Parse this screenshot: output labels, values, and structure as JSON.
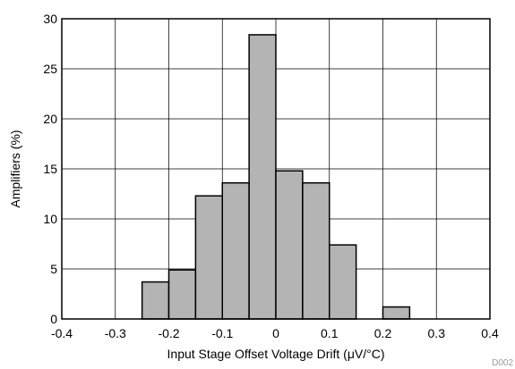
{
  "chart_data": {
    "type": "bar",
    "xlabel": "Input Stage Offset Voltage Drift (μV/°C)",
    "ylabel": "Amplifiers (%)",
    "xlim": [
      -0.4,
      0.4
    ],
    "ylim": [
      0,
      30
    ],
    "xticks": [
      -0.4,
      -0.3,
      -0.2,
      -0.1,
      0,
      0.1,
      0.2,
      0.3,
      0.4
    ],
    "xtick_labels": [
      "-0.4",
      "-0.3",
      "-0.2",
      "-0.1",
      "0",
      "0.1",
      "0.2",
      "0.3",
      "0.4"
    ],
    "yticks": [
      0,
      5,
      10,
      15,
      20,
      25,
      30
    ],
    "ytick_labels": [
      "0",
      "5",
      "10",
      "15",
      "20",
      "25",
      "30"
    ],
    "bin_width": 0.05,
    "bins": [
      {
        "x": -0.25,
        "value": 3.7
      },
      {
        "x": -0.2,
        "value": 4.9
      },
      {
        "x": -0.15,
        "value": 12.3
      },
      {
        "x": -0.1,
        "value": 13.6
      },
      {
        "x": -0.05,
        "value": 28.4
      },
      {
        "x": 0.0,
        "value": 14.8
      },
      {
        "x": 0.05,
        "value": 13.6
      },
      {
        "x": 0.1,
        "value": 7.4
      },
      {
        "x": 0.2,
        "value": 1.2
      }
    ],
    "grid": true,
    "bar_color": "#b4b4b4",
    "code": "D002"
  }
}
